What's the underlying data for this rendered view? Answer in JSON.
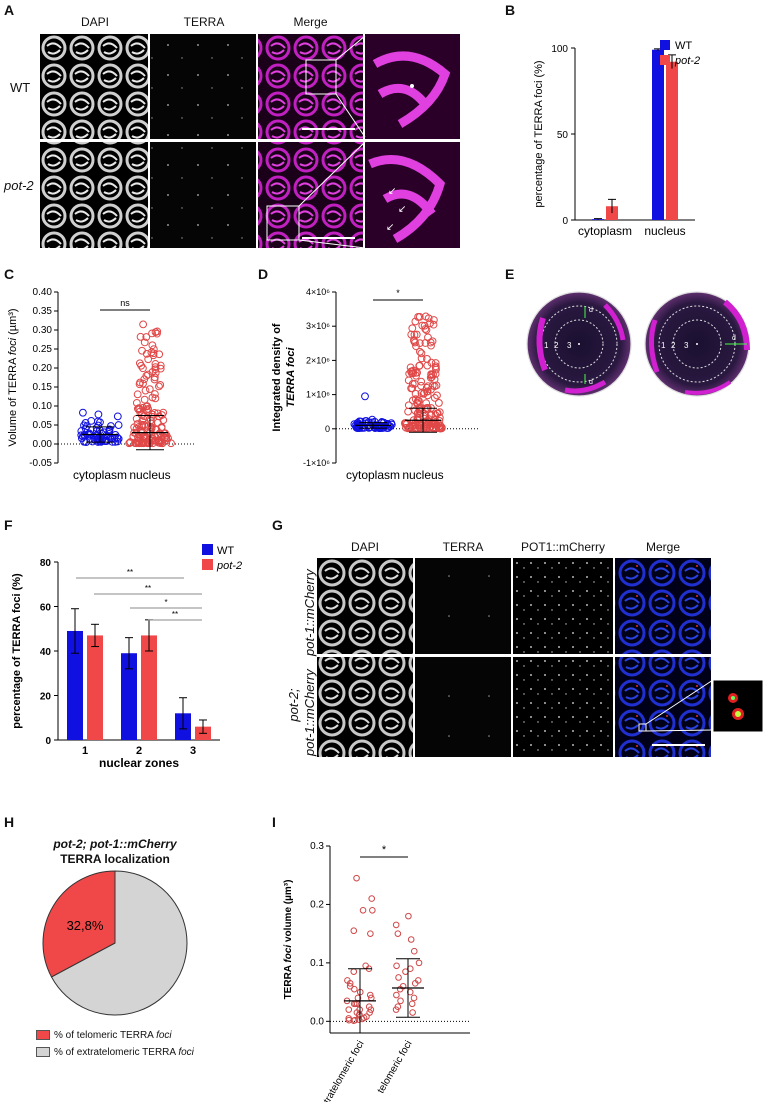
{
  "panels": {
    "A": "A",
    "B": "B",
    "C": "C",
    "D": "D",
    "E": "E",
    "F": "F",
    "G": "G",
    "H": "H",
    "I": "I"
  },
  "panelA": {
    "cols": [
      "DAPI",
      "TERRA",
      "Merge"
    ],
    "rows": [
      "WT",
      "pot-2"
    ]
  },
  "panelB": {
    "chart_data": {
      "type": "bar",
      "categories": [
        "cytoplasm",
        "nucleus"
      ],
      "series": [
        {
          "name": "WT",
          "values": [
            0.5,
            99
          ],
          "err": [
            0.3,
            0.5
          ],
          "color": "#1010e0"
        },
        {
          "name": "pot-2",
          "values": [
            8,
            92
          ],
          "err": [
            4,
            4
          ],
          "color": "#f04848"
        }
      ],
      "ylabel": "percentage of TERRA foci (%)",
      "ylim": [
        0,
        100
      ],
      "yticks": [
        "0",
        "50",
        "100"
      ],
      "legend": "top-right"
    }
  },
  "panelC": {
    "chart_data": {
      "type": "scatter",
      "categories": [
        "cytoplasm",
        "nucleus"
      ],
      "ylabel_pre": "Volume of TERRA ",
      "ylabel_it": "foci",
      "ylabel_post": " (µm³)",
      "ylim": [
        -0.05,
        0.4
      ],
      "yticks": [
        "-0.05",
        "0.00",
        "0.05",
        "0.10",
        "0.15",
        "0.20",
        "0.25",
        "0.30",
        "0.35",
        "0.40"
      ],
      "significance": "ns",
      "means": [
        0.025,
        0.03
      ],
      "sd": [
        0.02,
        0.045
      ]
    }
  },
  "panelD": {
    "chart_data": {
      "type": "scatter",
      "categories": [
        "cytoplasm",
        "nucleus"
      ],
      "ylabel_line1": "Integrated density of",
      "ylabel_line2_it": "TERRA foci",
      "ylim": [
        -1000000,
        4000000
      ],
      "yticks": [
        "-1×10⁶",
        "0",
        "1×10⁶",
        "2×10⁶",
        "3×10⁶",
        "4×10⁶"
      ],
      "significance": "*",
      "means": [
        100000,
        250000
      ],
      "sd": [
        80000,
        350000
      ]
    }
  },
  "panelE": {
    "zones": [
      "1",
      "2",
      "3"
    ],
    "d_labels": [
      "d",
      "d",
      "d"
    ]
  },
  "panelF": {
    "chart_data": {
      "type": "bar",
      "categories": [
        "1",
        "2",
        "3"
      ],
      "series": [
        {
          "name": "WT",
          "values": [
            49,
            39,
            12
          ],
          "err": [
            10,
            7,
            7
          ],
          "color": "#1010e0"
        },
        {
          "name": "pot-2",
          "values": [
            47,
            47,
            6
          ],
          "err": [
            5,
            7,
            3
          ],
          "color": "#f04848"
        }
      ],
      "xlabel": "nuclear zones",
      "ylabel": "percentage of TERRA foci (%)",
      "ylim": [
        0,
        80
      ],
      "yticks": [
        "0",
        "20",
        "40",
        "60",
        "80"
      ],
      "brackets": [
        "**",
        "**",
        "*",
        "**"
      ],
      "legend": "top-right"
    }
  },
  "panelG": {
    "cols": [
      "DAPI",
      "TERRA",
      "POT1::mCherry",
      "Merge"
    ],
    "row1": "pot-1::mCherry",
    "row2a": "pot-2;",
    "row2b": "pot-1::mCherry"
  },
  "panelH": {
    "title_line1": "pot-2; pot-1::mCherry",
    "title_line2": "TERRA localization",
    "chart_data": {
      "type": "pie",
      "slices": [
        {
          "label": "% of telomeric TERRA foci",
          "value": 32.8,
          "color": "#f04848",
          "text": "32,8%"
        },
        {
          "label": "% of extratelomeric TERRA foci",
          "value": 67.2,
          "color": "#d4d4d4"
        }
      ]
    },
    "legend_pre": "% of telomeric TERRA ",
    "legend_it": "foci",
    "legend2_pre": "% of extratelomeric TERRA ",
    "legend2_it": "foci"
  },
  "panelI": {
    "chart_data": {
      "type": "scatter",
      "categories": [
        "extratelomeric foci",
        "telomeric foci"
      ],
      "ylabel_pre": "TERRA ",
      "ylabel_it": "foci",
      "ylabel_post": " volume (µm³)",
      "ylim": [
        -0.02,
        0.3
      ],
      "yticks": [
        "0.0",
        "0.1",
        "0.2",
        "0.3"
      ],
      "significance": "*",
      "means": [
        0.035,
        0.057
      ],
      "sd": [
        0.055,
        0.05
      ]
    }
  }
}
